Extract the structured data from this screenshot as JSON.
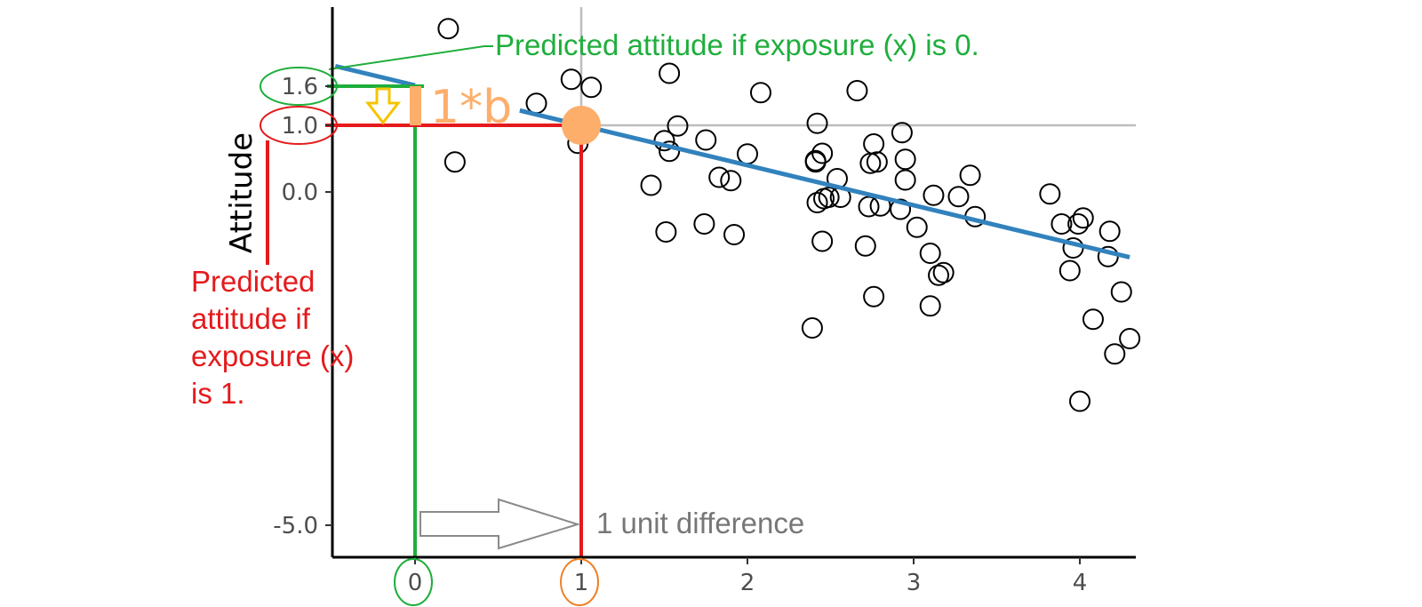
{
  "chart_data": {
    "type": "scatter",
    "title": "",
    "xlabel": "",
    "ylabel": "Attitude",
    "xlim": [
      -0.5,
      4.3
    ],
    "ylim": [
      -5.5,
      2.8
    ],
    "x_ticks": [
      0,
      1,
      2,
      3,
      4
    ],
    "x_tick_labels": [
      "0",
      "1",
      "2",
      "3",
      "4"
    ],
    "y_ticks": [
      -5.0,
      0.0,
      1.0,
      1.6
    ],
    "y_tick_labels": [
      "-5.0",
      "0.0",
      "1.0",
      "1.6"
    ],
    "grid": "reference lines at x = 1 and y = 1.0",
    "points": [
      {
        "x": 0.2,
        "y": 2.45
      },
      {
        "x": 0.24,
        "y": 0.45
      },
      {
        "x": 0.73,
        "y": 1.33
      },
      {
        "x": 0.94,
        "y": 1.69
      },
      {
        "x": 1.06,
        "y": 1.57
      },
      {
        "x": 0.98,
        "y": 0.73
      },
      {
        "x": 1.42,
        "y": 0.1
      },
      {
        "x": 1.5,
        "y": 0.77
      },
      {
        "x": 1.53,
        "y": 0.61
      },
      {
        "x": 1.58,
        "y": 0.99
      },
      {
        "x": 1.51,
        "y": -0.6
      },
      {
        "x": 1.53,
        "y": 1.78
      },
      {
        "x": 1.75,
        "y": 0.78
      },
      {
        "x": 1.74,
        "y": -0.48
      },
      {
        "x": 1.83,
        "y": 0.22
      },
      {
        "x": 1.9,
        "y": 0.17
      },
      {
        "x": 1.92,
        "y": -0.64
      },
      {
        "x": 2.0,
        "y": 0.57
      },
      {
        "x": 2.08,
        "y": 1.49
      },
      {
        "x": 2.39,
        "y": -2.04
      },
      {
        "x": 2.41,
        "y": 0.47
      },
      {
        "x": 2.42,
        "y": 1.03
      },
      {
        "x": 2.41,
        "y": 0.45
      },
      {
        "x": 2.45,
        "y": 0.58
      },
      {
        "x": 2.42,
        "y": -0.16
      },
      {
        "x": 2.46,
        "y": -0.1
      },
      {
        "x": 2.49,
        "y": -0.08
      },
      {
        "x": 2.45,
        "y": -0.74
      },
      {
        "x": 2.54,
        "y": 0.2
      },
      {
        "x": 2.56,
        "y": -0.08
      },
      {
        "x": 2.66,
        "y": 1.52
      },
      {
        "x": 2.71,
        "y": -0.81
      },
      {
        "x": 2.74,
        "y": 0.43
      },
      {
        "x": 2.73,
        "y": -0.22
      },
      {
        "x": 2.76,
        "y": 0.72
      },
      {
        "x": 2.76,
        "y": -1.57
      },
      {
        "x": 2.78,
        "y": 0.45
      },
      {
        "x": 2.8,
        "y": -0.21
      },
      {
        "x": 2.92,
        "y": -0.26
      },
      {
        "x": 2.93,
        "y": 0.89
      },
      {
        "x": 2.95,
        "y": 0.49
      },
      {
        "x": 2.95,
        "y": 0.18
      },
      {
        "x": 3.02,
        "y": -0.53
      },
      {
        "x": 3.1,
        "y": -0.92
      },
      {
        "x": 3.1,
        "y": -1.71
      },
      {
        "x": 3.12,
        "y": -0.05
      },
      {
        "x": 3.15,
        "y": -1.25
      },
      {
        "x": 3.18,
        "y": -1.21
      },
      {
        "x": 3.27,
        "y": -0.07
      },
      {
        "x": 3.34,
        "y": 0.25
      },
      {
        "x": 3.37,
        "y": -0.37
      },
      {
        "x": 3.82,
        "y": -0.03
      },
      {
        "x": 3.89,
        "y": -0.48
      },
      {
        "x": 3.94,
        "y": -1.18
      },
      {
        "x": 3.96,
        "y": -0.84
      },
      {
        "x": 3.99,
        "y": -0.48
      },
      {
        "x": 4.02,
        "y": -0.39
      },
      {
        "x": 4.0,
        "y": -3.14
      },
      {
        "x": 4.08,
        "y": -1.91
      },
      {
        "x": 4.17,
        "y": -0.97
      },
      {
        "x": 4.18,
        "y": -0.59
      },
      {
        "x": 4.21,
        "y": -2.43
      },
      {
        "x": 4.25,
        "y": -1.5
      },
      {
        "x": 4.3,
        "y": -2.2
      }
    ],
    "regression_line": {
      "intercept": 1.6,
      "slope": -0.6,
      "color": "#3182bd"
    },
    "highlight_point": {
      "x": 1,
      "y": 1.0,
      "color": "#fdae6b"
    },
    "annotations": {
      "intercept_text": "Predicted attitude if exposure (x) is 0.",
      "intercept_color": "#1fae3c",
      "slope_text": [
        "Predicted",
        "attitude if",
        "exposure (x)",
        "is 1."
      ],
      "slope_color": "#e41a1c",
      "b_text": "1*b",
      "b_color": "#fdae6b",
      "arrow_color": "#f5c400",
      "unit_text": "1 unit difference",
      "unit_color": "#777777",
      "x1_circle_color": "#f07f24"
    }
  }
}
